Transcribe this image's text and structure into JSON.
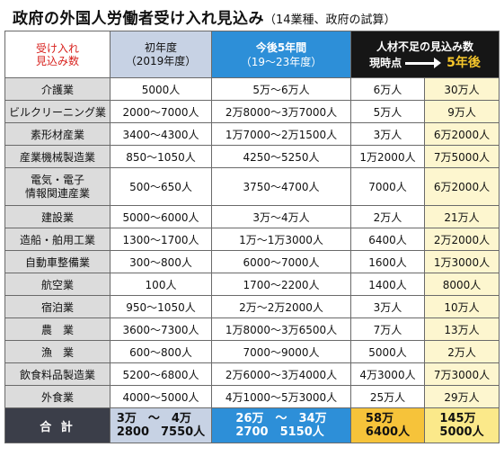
{
  "title": "政府の外国人労働者受け入れ見込み",
  "subtitle": "（14業種、政府の試算）",
  "corner": [
    "受け入れ",
    "見込み数"
  ],
  "columns": {
    "first_year": [
      "初年度",
      "（2019年度）"
    ],
    "five_years": [
      "今後5年間",
      "（19～23年度）"
    ],
    "shortage": "人材不足の見込み数",
    "current": "現時点",
    "five_years_later": "5年後"
  },
  "rows": [
    {
      "industry": [
        "介護業"
      ],
      "first_year": "5000人",
      "five_years": "5万～6万人",
      "current": "6万人",
      "five_later": "30万人"
    },
    {
      "industry": [
        "ビルクリーニング業"
      ],
      "first_year": "2000～7000人",
      "five_years": "2万8000～3万7000人",
      "current": "5万人",
      "five_later": "9万人"
    },
    {
      "industry": [
        "素形材産業"
      ],
      "first_year": "3400～4300人",
      "five_years": "1万7000～2万1500人",
      "current": "3万人",
      "five_later": "6万2000人"
    },
    {
      "industry": [
        "産業機械製造業"
      ],
      "first_year": "850～1050人",
      "five_years": "4250～5250人",
      "current": "1万2000人",
      "five_later": "7万5000人"
    },
    {
      "industry": [
        "電気・電子",
        "情報関連産業"
      ],
      "first_year": "500～650人",
      "five_years": "3750～4700人",
      "current": "7000人",
      "five_later": "6万2000人"
    },
    {
      "industry": [
        "建設業"
      ],
      "first_year": "5000～6000人",
      "five_years": "3万～4万人",
      "current": "2万人",
      "five_later": "21万人"
    },
    {
      "industry": [
        "造船・舶用工業"
      ],
      "first_year": "1300～1700人",
      "five_years": "1万～1万3000人",
      "current": "6400人",
      "five_later": "2万2000人"
    },
    {
      "industry": [
        "自動車整備業"
      ],
      "first_year": "300～800人",
      "five_years": "6000～7000人",
      "current": "1600人",
      "five_later": "1万3000人"
    },
    {
      "industry": [
        "航空業"
      ],
      "first_year": "100人",
      "five_years": "1700～2200人",
      "current": "1400人",
      "five_later": "8000人"
    },
    {
      "industry": [
        "宿泊業"
      ],
      "first_year": "950～1050人",
      "five_years": "2万～2万2000人",
      "current": "3万人",
      "five_later": "10万人"
    },
    {
      "industry": [
        "農　業"
      ],
      "first_year": "3600～7300人",
      "five_years": "1万8000～3万6500人",
      "current": "7万人",
      "five_later": "13万人"
    },
    {
      "industry": [
        "漁　業"
      ],
      "first_year": "600～800人",
      "five_years": "7000～9000人",
      "current": "5000人",
      "five_later": "2万人"
    },
    {
      "industry": [
        "飲食料品製造業"
      ],
      "first_year": "5200～6800人",
      "five_years": "2万6000～3万4000人",
      "current": "4万3000人",
      "five_later": "7万3000人"
    },
    {
      "industry": [
        "外食業"
      ],
      "first_year": "4000～5000人",
      "five_years": "4万1000～5万3000人",
      "current": "25万人",
      "five_later": "29万人"
    }
  ],
  "total": {
    "label": "合 計",
    "first_year": [
      "3万　～　4万",
      "2800　7550人"
    ],
    "five_years": [
      "26万　～　34万",
      "2700　5150人"
    ],
    "current": [
      "58万",
      "6400人"
    ],
    "five_later": [
      "145万",
      "5000人"
    ]
  },
  "colors": {
    "header_first": "#c7d2e4",
    "header_five": "#2d8fd8",
    "header_shortage": "#161616",
    "industry_bg": "#dcdcdc",
    "five_later_bg": "#fdf6cf",
    "total_label_bg": "#3b3e49",
    "total_current_bg": "#f6c33a",
    "total_five_later_bg": "#fbe98a",
    "corner_text": "#d8221e"
  }
}
